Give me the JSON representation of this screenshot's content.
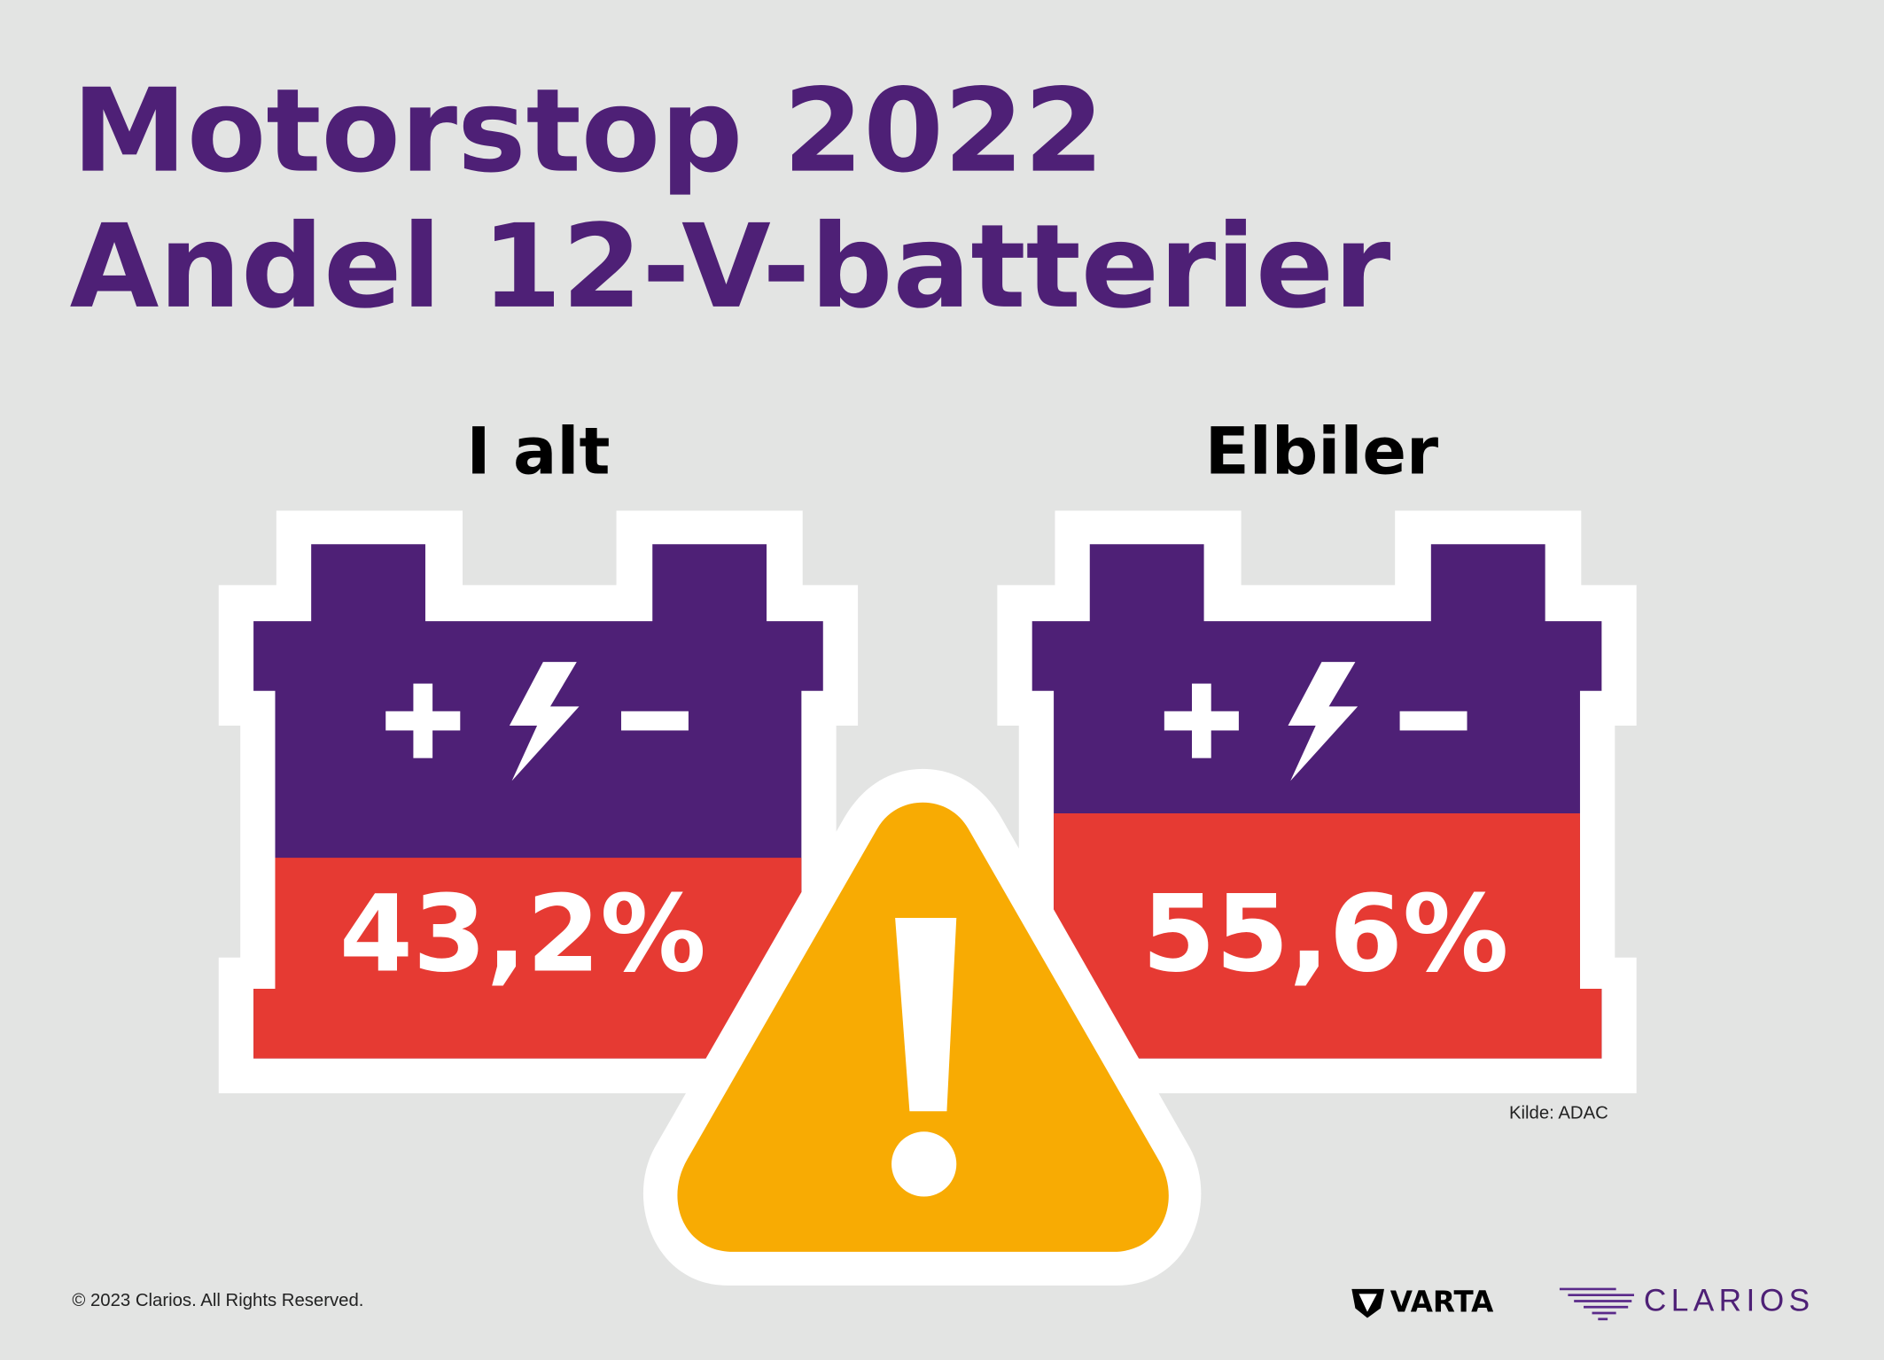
{
  "title": {
    "line1": "Motorstop 2022",
    "line2": "Andel 12-V-batterier"
  },
  "batteries": [
    {
      "label": "I alt",
      "value_text": "43,2%",
      "value": 43.2
    },
    {
      "label": "Elbiler",
      "value_text": "55,6%",
      "value": 55.6
    }
  ],
  "icons": [
    "plus-icon",
    "lightning-icon",
    "minus-icon",
    "warning-icon"
  ],
  "source": "Kilde: ADAC",
  "copyright": "© 2023 Clarios. All Rights Reserved.",
  "logos": {
    "varta": "VARTA",
    "clarios": "CLARIOS"
  },
  "colors": {
    "purple": "#4e2076",
    "red": "#e63a33",
    "yellow": "#f8ab03",
    "background": "#e3e4e3"
  }
}
